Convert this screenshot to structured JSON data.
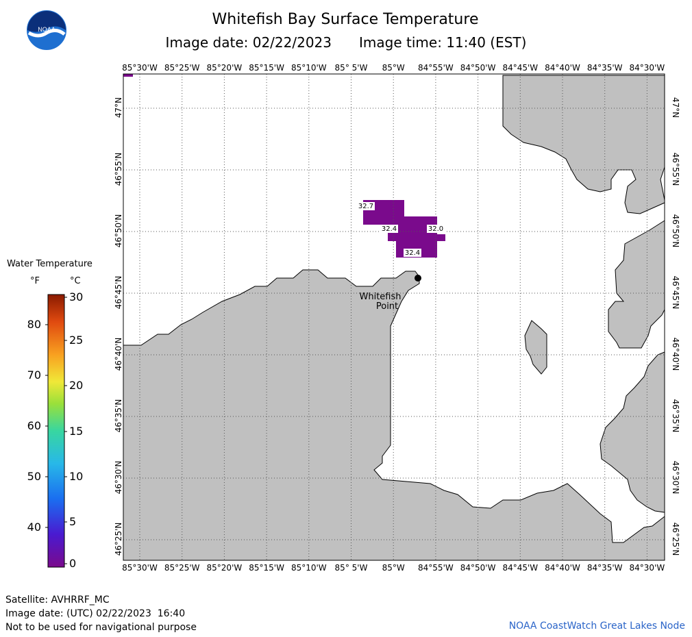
{
  "header": {
    "title": "Whitefish Bay Surface Temperature",
    "image_date_label": "Image date: 02/22/2023",
    "image_time_label": "Image time: 11:40 (EST)"
  },
  "logo": {
    "text": "NOAA",
    "icon": "noaa-logo-icon"
  },
  "map": {
    "lon_labels": [
      "85°30'W",
      "85°25'W",
      "85°20'W",
      "85°15'W",
      "85°10'W",
      "85° 5'W",
      "85°W",
      "84°55'W",
      "84°50'W",
      "84°45'W",
      "84°40'W",
      "84°35'W",
      "84°30'W"
    ],
    "lat_labels": [
      "47°N",
      "46°55'N",
      "46°50'N",
      "46°45'N",
      "46°40'N",
      "46°35'N",
      "46°30'N",
      "46°25'N"
    ],
    "place_label_line1": "Whitefish",
    "place_label_line2": "Point",
    "temperature_labels": [
      "32.7",
      "32.4",
      "32.0",
      "32.4"
    ],
    "land_color": "#c0c0c0",
    "data_color": "#7a0a8c"
  },
  "legend": {
    "title": "Water Temperature",
    "unit_f": "°F",
    "unit_c": "°C",
    "f_ticks": [
      "80",
      "70",
      "60",
      "50",
      "40"
    ],
    "c_ticks": [
      "30",
      "25",
      "20",
      "15",
      "10",
      "5",
      "0"
    ]
  },
  "footer": {
    "satellite": "Satellite: AVHRRF_MC",
    "utc_date": "Image date: (UTC) 02/22/2023  16:40",
    "disclaimer": "Not to be used for navigational purpose",
    "source": "NOAA CoastWatch Great Lakes Node"
  }
}
